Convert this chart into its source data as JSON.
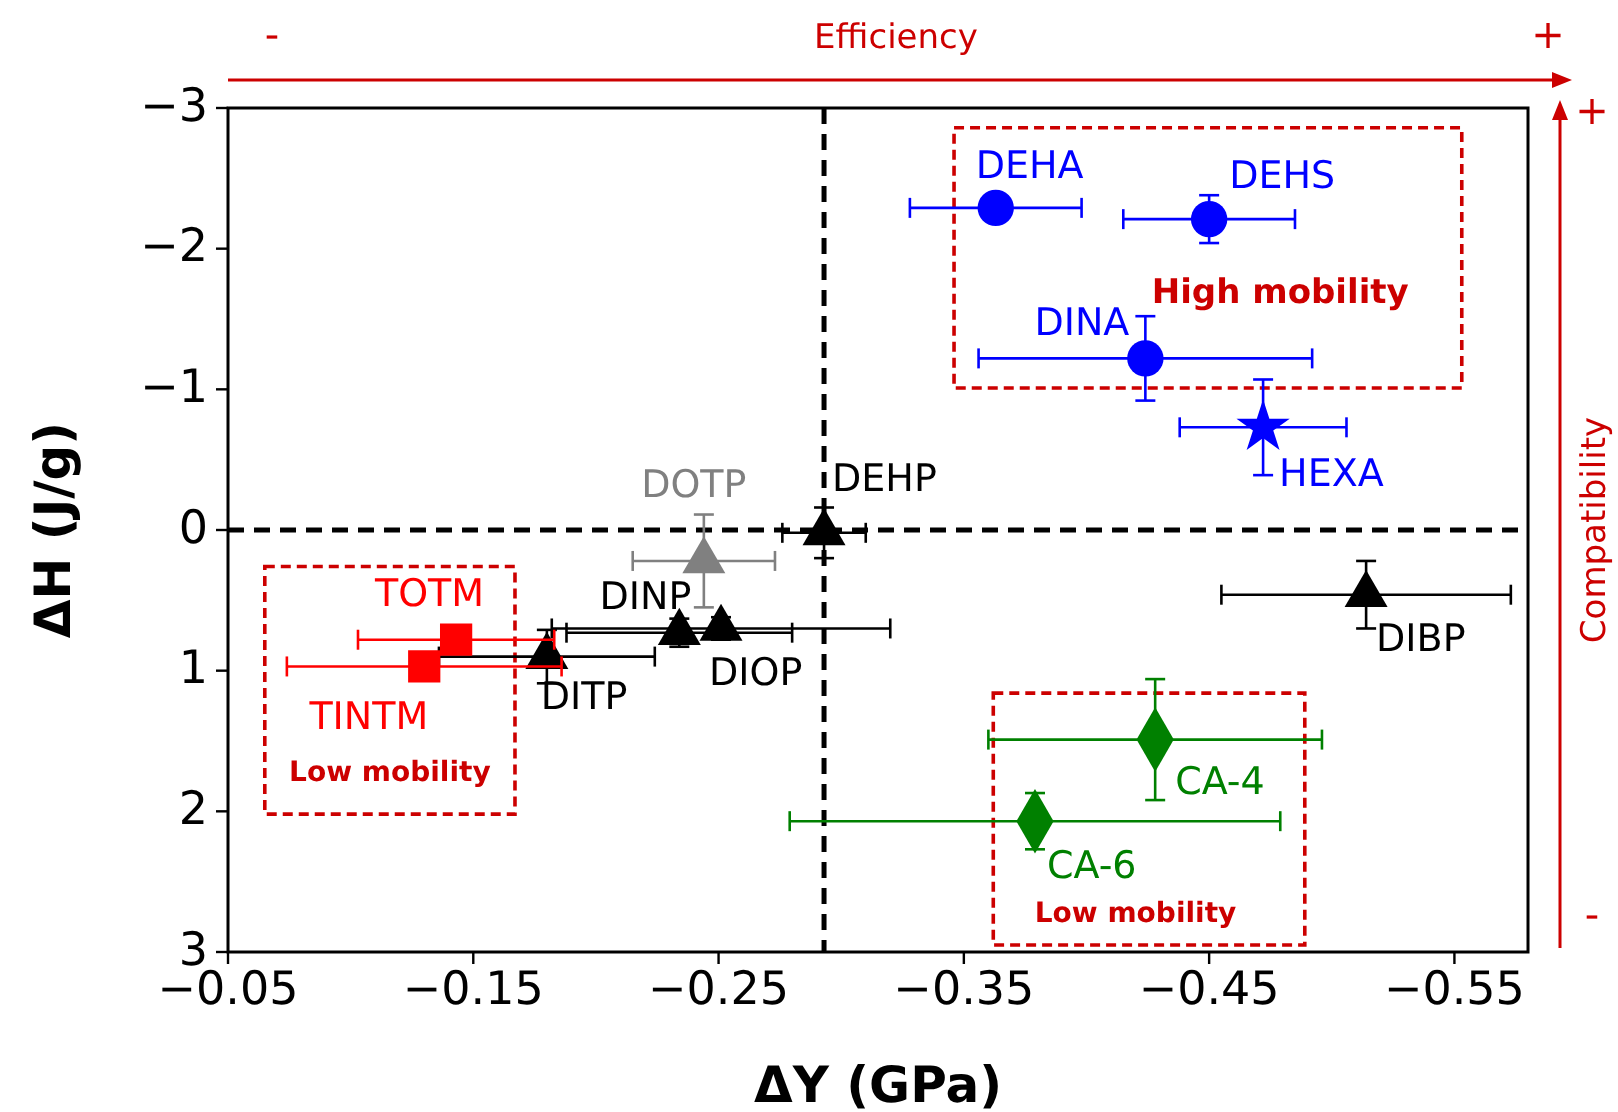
{
  "chart_data": {
    "type": "scatter",
    "xlabel": "ΔY (GPa)",
    "ylabel": "ΔH (J/g)",
    "xlim": [
      -0.05,
      -0.58
    ],
    "ylim": [
      3,
      -3
    ],
    "xticks": [
      {
        "value": -0.05,
        "label": "−0.05"
      },
      {
        "value": -0.15,
        "label": "−0.15"
      },
      {
        "value": -0.25,
        "label": "−0.25"
      },
      {
        "value": -0.35,
        "label": "−0.35"
      },
      {
        "value": -0.45,
        "label": "−0.45"
      },
      {
        "value": -0.55,
        "label": "−0.55"
      }
    ],
    "yticks": [
      {
        "value": -3,
        "label": "−3"
      },
      {
        "value": -2,
        "label": "−2"
      },
      {
        "value": -1,
        "label": "−1"
      },
      0,
      1,
      2,
      3
    ],
    "grid": false,
    "series": [
      {
        "name": "DEHA",
        "color": "#0000ff",
        "marker": "circle",
        "x": [
          -0.363
        ],
        "values": [
          -2.29
        ],
        "xerrors": [
          0.035
        ]
      },
      {
        "name": "DEHS",
        "color": "#0000ff",
        "marker": "circle",
        "x": [
          -0.45
        ],
        "values": [
          -2.21
        ],
        "xerrors": [
          0.035
        ],
        "errors": [
          0.17
        ]
      },
      {
        "name": "DINA",
        "color": "#0000ff",
        "marker": "circle",
        "x": [
          -0.424
        ],
        "values": [
          -1.22
        ],
        "xerrors": [
          0.068
        ],
        "errors": [
          0.3
        ]
      },
      {
        "name": "HEXA",
        "color": "#0000ff",
        "marker": "star",
        "x": [
          -0.472
        ],
        "values": [
          -0.73
        ],
        "xerrors": [
          0.034
        ],
        "errors": [
          0.34
        ]
      },
      {
        "name": "DEHP",
        "color": "#000000",
        "marker": "triangle",
        "x": [
          -0.293
        ],
        "values": [
          0.02
        ],
        "xerrors": [
          0.017
        ],
        "errors": [
          0.18
        ]
      },
      {
        "name": "DOTP",
        "color": "#808080",
        "marker": "triangle",
        "x": [
          -0.244
        ],
        "values": [
          0.22
        ],
        "xerrors": [
          0.029
        ],
        "errors": [
          0.33
        ]
      },
      {
        "name": "DINP",
        "color": "#000000",
        "marker": "triangle",
        "x": [
          -0.234
        ],
        "values": [
          0.73
        ],
        "xerrors": [
          0.046
        ],
        "errors": [
          0.1
        ]
      },
      {
        "name": "DIOP",
        "color": "#000000",
        "marker": "triangle",
        "x": [
          -0.251
        ],
        "values": [
          0.7
        ],
        "xerrors": [
          0.069
        ],
        "errors": [
          0.08
        ]
      },
      {
        "name": "DITP",
        "color": "#000000",
        "marker": "triangle",
        "x": [
          -0.18
        ],
        "values": [
          0.9
        ],
        "xerrors": [
          0.044
        ],
        "errors": [
          0.19
        ]
      },
      {
        "name": "TOTM",
        "color": "#ff0000",
        "marker": "square",
        "x": [
          -0.143
        ],
        "values": [
          0.78
        ],
        "xerrors": [
          0.04
        ]
      },
      {
        "name": "TINTM",
        "color": "#ff0000",
        "marker": "square",
        "x": [
          -0.13
        ],
        "values": [
          0.97
        ],
        "xerrors": [
          0.056
        ]
      },
      {
        "name": "DIBP",
        "color": "#000000",
        "marker": "triangle",
        "x": [
          -0.514
        ],
        "values": [
          0.46
        ],
        "xerrors": [
          0.059
        ],
        "errors": [
          0.24
        ]
      },
      {
        "name": "CA-4",
        "color": "#008000",
        "marker": "diamond",
        "x": [
          -0.428
        ],
        "values": [
          1.49
        ],
        "xerrors": [
          0.068
        ],
        "errors": [
          0.43
        ]
      },
      {
        "name": "CA-6",
        "color": "#008000",
        "marker": "diamond",
        "x": [
          -0.379
        ],
        "values": [
          2.07
        ],
        "xerrors": [
          0.1
        ],
        "errors": [
          0.2
        ]
      }
    ],
    "ref_lines": [
      {
        "axis": "x",
        "value": -0.293,
        "color": "#000000",
        "line_style": "dashed"
      },
      {
        "axis": "y",
        "value": 0,
        "color": "#000000",
        "line_style": "dashed"
      }
    ],
    "annotations": [
      "High mobility",
      "Low mobility",
      "Low mobility",
      "Efficiency",
      "-",
      "+",
      "Compatibility",
      "+",
      "-"
    ]
  }
}
